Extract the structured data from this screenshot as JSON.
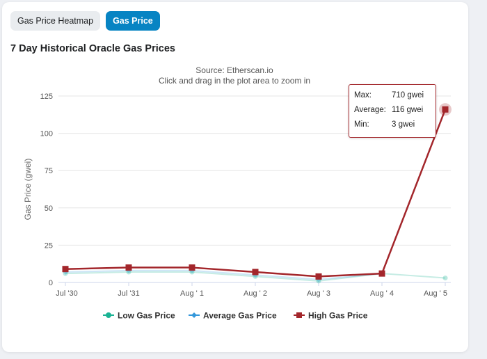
{
  "tabs": [
    {
      "label": "Gas Price Heatmap",
      "active": false
    },
    {
      "label": "Gas Price",
      "active": true
    }
  ],
  "page_title": "7 Day Historical Oracle Gas Prices",
  "colors": {
    "low": "#1ab394",
    "average": "#3498db",
    "high": "#a3262b",
    "active_tab": "#0784c3"
  },
  "tooltip": {
    "max_label": "Max:",
    "max_value": "710 gwei",
    "avg_label": "Average:",
    "avg_value": "116 gwei",
    "min_label": "Min:",
    "min_value": "3 gwei"
  },
  "chart_data": {
    "type": "line",
    "subtitle_lines": [
      "Source: Etherscan.io",
      "Click and drag in the plot area to zoom in"
    ],
    "ylabel": "Gas Price (gwei)",
    "categories": [
      "Jul '30",
      "Jul '31",
      "Aug ' 1",
      "Aug ' 2",
      "Aug ' 3",
      "Aug ' 4",
      "Aug ' 5"
    ],
    "yticks": [
      0,
      25,
      50,
      75,
      100,
      125
    ],
    "ylim": [
      0,
      125
    ],
    "grid": true,
    "legend_position": "bottom",
    "series": [
      {
        "name": "Low Gas Price",
        "color": "#1ab394",
        "marker": "circle",
        "values": [
          6,
          7,
          7,
          4,
          1,
          6,
          3
        ]
      },
      {
        "name": "Average Gas Price",
        "color": "#3498db",
        "marker": "diamond",
        "values": [
          7,
          8,
          8,
          5,
          2,
          6,
          116
        ]
      },
      {
        "name": "High Gas Price",
        "color": "#a3262b",
        "marker": "square",
        "values": [
          9,
          10,
          10,
          7,
          4,
          6,
          116
        ]
      }
    ]
  }
}
